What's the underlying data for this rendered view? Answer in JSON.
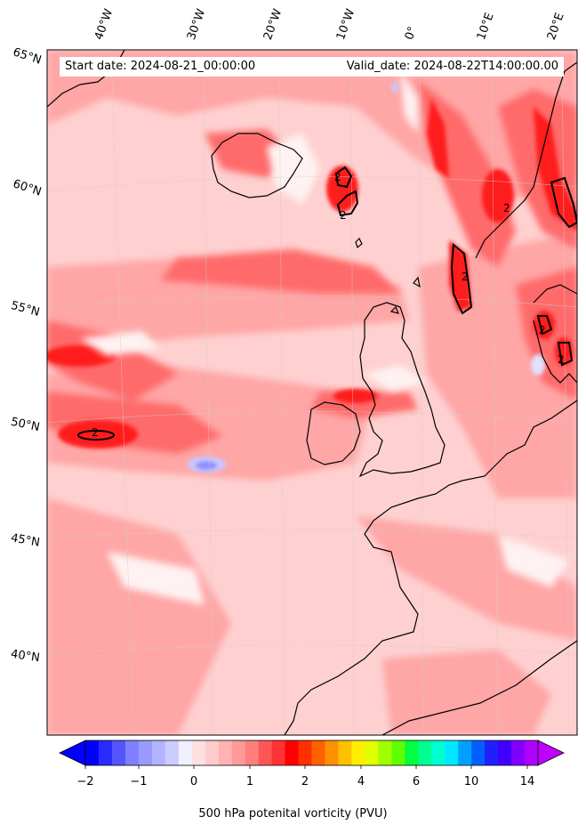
{
  "header": {
    "start_date": "Start date: 2024-08-21_00:00:00",
    "valid_date": "Valid_date: 2024-08-22T14:00:00.00"
  },
  "longitude_labels": [
    "40°W",
    "30°W",
    "20°W",
    "10°W",
    "0°",
    "10°E",
    "20°E"
  ],
  "latitude_labels": [
    "65°N",
    "60°N",
    "55°N",
    "50°N",
    "45°N",
    "40°N"
  ],
  "contour_labels": [
    "2",
    "2",
    "2",
    "2",
    "2",
    "2",
    "2"
  ],
  "colorbar": {
    "ticks": [
      "−2",
      "−1",
      "0",
      "1",
      "2",
      "4",
      "6",
      "10",
      "14"
    ],
    "label": "500 hPa potenital vorticity (PVU)",
    "colors": [
      "#0000ff",
      "#2a2aff",
      "#5555ff",
      "#7f7fff",
      "#9999ff",
      "#b3b3ff",
      "#ccccff",
      "#f0f0ff",
      "#ffe0e0",
      "#ffcccc",
      "#ffb3b3",
      "#ff9999",
      "#ff7f7f",
      "#ff5555",
      "#ff3333",
      "#ff0000",
      "#ff3000",
      "#ff6000",
      "#ff9000",
      "#ffc000",
      "#ffee00",
      "#e0ff00",
      "#a0ff00",
      "#60ff00",
      "#00ff40",
      "#00ff90",
      "#00ffd0",
      "#00e8ff",
      "#00a0ff",
      "#0060ff",
      "#2020ff",
      "#4000ff",
      "#8000ff",
      "#b000ff"
    ],
    "min_arrow_color": "#0000ff",
    "max_arrow_color": "#c000ff"
  },
  "colors": {
    "background_field": "#ffd0d0",
    "medium": "#ffa0a0",
    "strong": "#ff5555",
    "peak": "#ff1a1a",
    "low": "#fff0f0",
    "negative": "#9999ff",
    "coast": "#000000"
  }
}
